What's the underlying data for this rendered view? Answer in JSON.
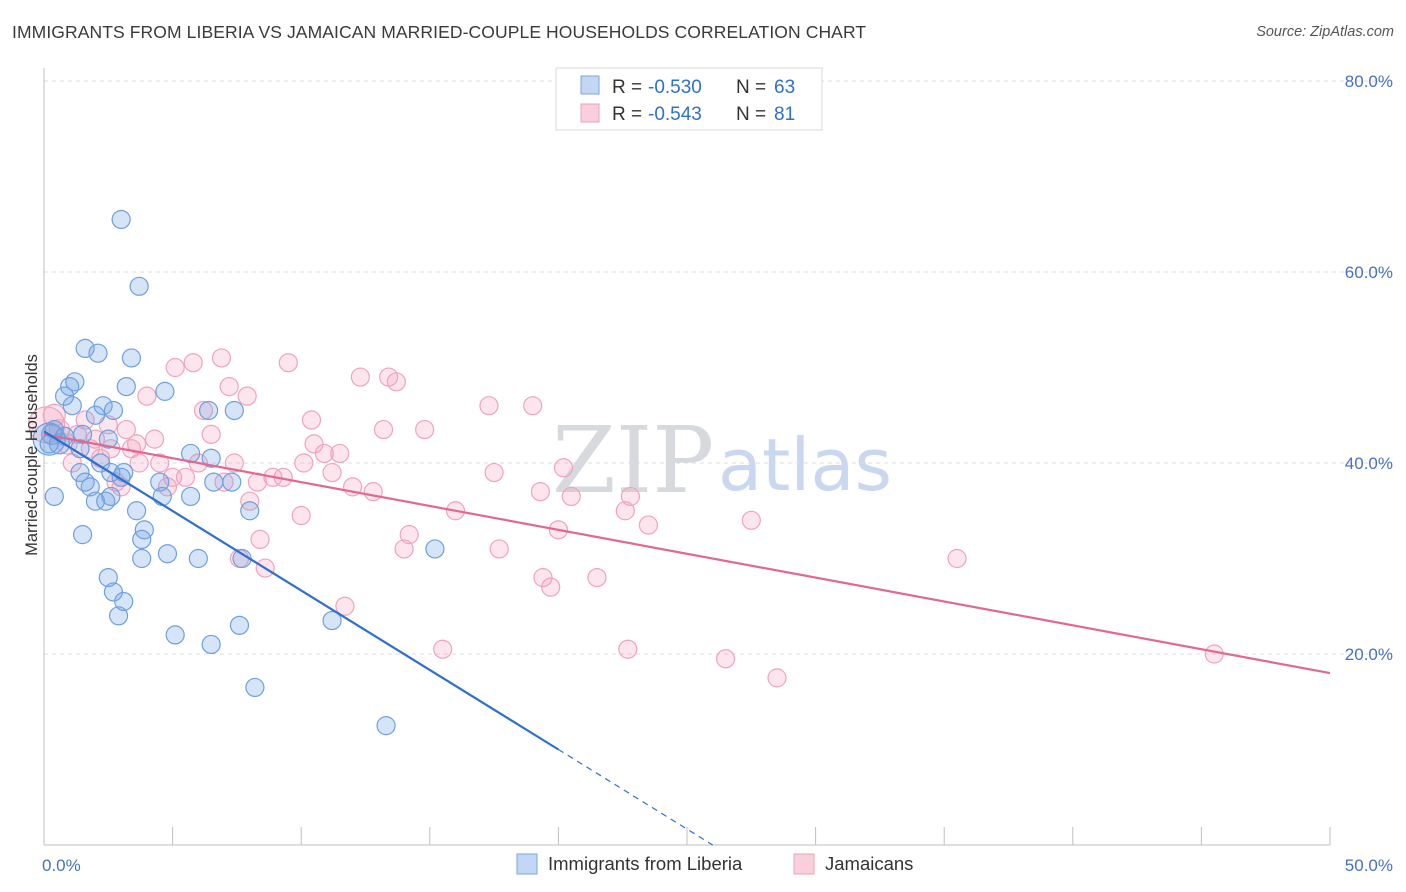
{
  "header": {
    "title": "IMMIGRANTS FROM LIBERIA VS JAMAICAN MARRIED-COUPLE HOUSEHOLDS CORRELATION CHART",
    "source": "Source: ZipAtlas.com"
  },
  "watermark": {
    "part1": "ZIP",
    "part2": "atlas"
  },
  "legend": {
    "rows": [
      {
        "r_label": "R = ",
        "r_value": "-0.530",
        "n_label": "N = ",
        "n_value": "63"
      },
      {
        "r_label": "R = ",
        "r_value": "-0.543",
        "n_label": "N = ",
        "n_value": "81"
      }
    ]
  },
  "chart_data": {
    "type": "scatter",
    "xlabel": "",
    "ylabel": "Married-couple Households",
    "xlim": [
      0,
      50
    ],
    "ylim": [
      0,
      82
    ],
    "x_tick_labels": {
      "min": "0.0%",
      "max": "50.0%"
    },
    "y_ticks": [
      {
        "value": 20,
        "label": "20.0%"
      },
      {
        "value": 40,
        "label": "40.0%"
      },
      {
        "value": 60,
        "label": "60.0%"
      },
      {
        "value": 80,
        "label": "80.0%"
      }
    ],
    "grid": "horizontal dashed",
    "legend_position": "top-center",
    "colors": {
      "liberia": "#6f9fe0",
      "liberia_line": "#2f6fd0",
      "jamaica": "#f19bb8",
      "jamaica_line": "#e2688f"
    },
    "series": [
      {
        "name": "Immigrants from Liberia",
        "r": -0.53,
        "n": 63,
        "trend": {
          "x0": 0.0,
          "y0": 43.3,
          "x1": 20.0,
          "y1": 10.0,
          "dash_to_x": 26.0,
          "dash_to_y": 0.0
        },
        "points": [
          [
            0.2,
            42.5,
            16
          ],
          [
            0.3,
            43.0,
            10
          ],
          [
            0.4,
            43.5,
            9
          ],
          [
            0.6,
            42.0,
            10
          ],
          [
            0.8,
            42.8,
            9
          ],
          [
            1.0,
            48.0,
            9
          ],
          [
            1.1,
            46.0,
            9
          ],
          [
            1.2,
            48.5,
            9
          ],
          [
            1.4,
            39.0,
            9
          ],
          [
            0.8,
            47.0,
            9
          ],
          [
            1.5,
            32.5,
            9
          ],
          [
            1.6,
            38.0,
            9
          ],
          [
            1.4,
            41.5,
            9
          ],
          [
            1.8,
            37.5,
            9
          ],
          [
            0.4,
            36.5,
            9
          ],
          [
            2.0,
            36.0,
            9
          ],
          [
            2.2,
            40.0,
            9
          ],
          [
            2.0,
            45.0,
            9
          ],
          [
            1.5,
            43.0,
            9
          ],
          [
            1.6,
            52.0,
            9
          ],
          [
            2.1,
            51.5,
            9
          ],
          [
            2.3,
            46.0,
            9
          ],
          [
            2.4,
            36.0,
            9
          ],
          [
            2.5,
            42.5,
            9
          ],
          [
            2.6,
            36.5,
            9
          ],
          [
            2.7,
            45.5,
            9
          ],
          [
            2.5,
            28.0,
            9
          ],
          [
            2.7,
            26.5,
            9
          ],
          [
            2.9,
            24.0,
            9
          ],
          [
            2.6,
            39.0,
            9
          ],
          [
            3.1,
            25.5,
            9
          ],
          [
            3.0,
            38.5,
            9
          ],
          [
            3.2,
            48.0,
            9
          ],
          [
            3.4,
            51.0,
            9
          ],
          [
            3.1,
            39.0,
            9
          ],
          [
            3.0,
            65.5,
            9
          ],
          [
            3.7,
            58.5,
            9
          ],
          [
            3.8,
            30.0,
            9
          ],
          [
            3.9,
            33.0,
            9
          ],
          [
            3.8,
            32.0,
            9
          ],
          [
            3.6,
            35.0,
            9
          ],
          [
            4.5,
            38.0,
            9
          ],
          [
            4.6,
            36.5,
            9
          ],
          [
            4.7,
            47.5,
            9
          ],
          [
            4.8,
            30.5,
            9
          ],
          [
            5.1,
            22.0,
            9
          ],
          [
            5.7,
            36.5,
            9
          ],
          [
            5.7,
            41.0,
            9
          ],
          [
            6.0,
            30.0,
            9
          ],
          [
            6.4,
            45.5,
            9
          ],
          [
            6.5,
            40.5,
            9
          ],
          [
            6.6,
            38.0,
            9
          ],
          [
            7.3,
            38.0,
            9
          ],
          [
            7.4,
            45.5,
            9
          ],
          [
            7.6,
            23.0,
            9
          ],
          [
            7.7,
            30.0,
            9
          ],
          [
            6.5,
            21.0,
            9
          ],
          [
            8.0,
            35.0,
            9
          ],
          [
            8.2,
            16.5,
            9
          ],
          [
            11.2,
            23.5,
            9
          ],
          [
            13.3,
            12.5,
            9
          ],
          [
            15.2,
            31.0,
            9
          ],
          [
            0.2,
            42.0,
            9
          ]
        ]
      },
      {
        "name": "Jamaicans",
        "r": -0.543,
        "n": 81,
        "trend": {
          "x0": 0.0,
          "y0": 43.0,
          "x1": 50.0,
          "y1": 18.0
        },
        "points": [
          [
            0.1,
            44.0,
            18
          ],
          [
            0.4,
            45.0,
            11
          ],
          [
            0.6,
            43.5,
            10
          ],
          [
            0.9,
            42.0,
            10
          ],
          [
            1.1,
            40.0,
            9
          ],
          [
            1.3,
            43.0,
            9
          ],
          [
            1.6,
            44.5,
            9
          ],
          [
            1.8,
            41.5,
            9
          ],
          [
            2.0,
            42.5,
            9
          ],
          [
            2.2,
            40.5,
            9
          ],
          [
            2.5,
            44.0,
            9
          ],
          [
            2.6,
            41.5,
            9
          ],
          [
            2.8,
            38.0,
            9
          ],
          [
            3.0,
            37.5,
            9
          ],
          [
            3.2,
            43.5,
            9
          ],
          [
            3.4,
            41.5,
            9
          ],
          [
            3.6,
            42.0,
            9
          ],
          [
            3.7,
            40.0,
            9
          ],
          [
            4.0,
            47.0,
            9
          ],
          [
            4.3,
            42.5,
            9
          ],
          [
            4.5,
            40.0,
            9
          ],
          [
            4.8,
            37.5,
            9
          ],
          [
            5.0,
            38.5,
            9
          ],
          [
            5.1,
            50.0,
            9
          ],
          [
            5.5,
            38.5,
            9
          ],
          [
            5.8,
            50.5,
            9
          ],
          [
            6.0,
            40.0,
            9
          ],
          [
            6.2,
            45.5,
            9
          ],
          [
            6.5,
            43.0,
            9
          ],
          [
            6.9,
            51.0,
            9
          ],
          [
            7.0,
            38.0,
            9
          ],
          [
            7.2,
            48.0,
            9
          ],
          [
            7.4,
            40.0,
            9
          ],
          [
            7.6,
            30.0,
            9
          ],
          [
            7.9,
            47.0,
            9
          ],
          [
            8.0,
            36.0,
            9
          ],
          [
            8.3,
            38.0,
            9
          ],
          [
            8.6,
            29.0,
            9
          ],
          [
            8.9,
            38.5,
            9
          ],
          [
            9.3,
            38.5,
            9
          ],
          [
            9.5,
            50.5,
            9
          ],
          [
            10.0,
            34.5,
            9
          ],
          [
            10.1,
            40.0,
            9
          ],
          [
            10.4,
            44.5,
            9
          ],
          [
            10.5,
            42.0,
            9
          ],
          [
            10.9,
            41.0,
            9
          ],
          [
            11.2,
            39.0,
            9
          ],
          [
            11.5,
            41.0,
            9
          ],
          [
            11.7,
            25.0,
            9
          ],
          [
            12.0,
            37.5,
            9
          ],
          [
            12.3,
            49.0,
            9
          ],
          [
            12.8,
            37.0,
            9
          ],
          [
            13.2,
            43.5,
            9
          ],
          [
            13.4,
            49.0,
            9
          ],
          [
            13.7,
            48.5,
            9
          ],
          [
            14.0,
            31.0,
            9
          ],
          [
            14.2,
            32.5,
            9
          ],
          [
            14.8,
            43.5,
            9
          ],
          [
            15.5,
            20.5,
            9
          ],
          [
            16.0,
            35.0,
            9
          ],
          [
            17.3,
            46.0,
            9
          ],
          [
            17.5,
            39.0,
            9
          ],
          [
            17.7,
            31.0,
            9
          ],
          [
            19.0,
            46.0,
            9
          ],
          [
            19.3,
            37.0,
            9
          ],
          [
            19.4,
            28.0,
            9
          ],
          [
            19.7,
            27.0,
            9
          ],
          [
            20.0,
            33.0,
            9
          ],
          [
            20.2,
            39.5,
            9
          ],
          [
            20.5,
            36.5,
            9
          ],
          [
            21.5,
            28.0,
            9
          ],
          [
            22.6,
            35.0,
            9
          ],
          [
            22.7,
            20.5,
            9
          ],
          [
            22.8,
            36.5,
            9
          ],
          [
            23.5,
            33.5,
            9
          ],
          [
            26.5,
            19.5,
            9
          ],
          [
            27.5,
            34.0,
            9
          ],
          [
            28.5,
            17.5,
            9
          ],
          [
            35.5,
            30.0,
            9
          ],
          [
            45.5,
            20.0,
            9
          ],
          [
            8.4,
            32.0,
            9
          ]
        ]
      }
    ]
  }
}
